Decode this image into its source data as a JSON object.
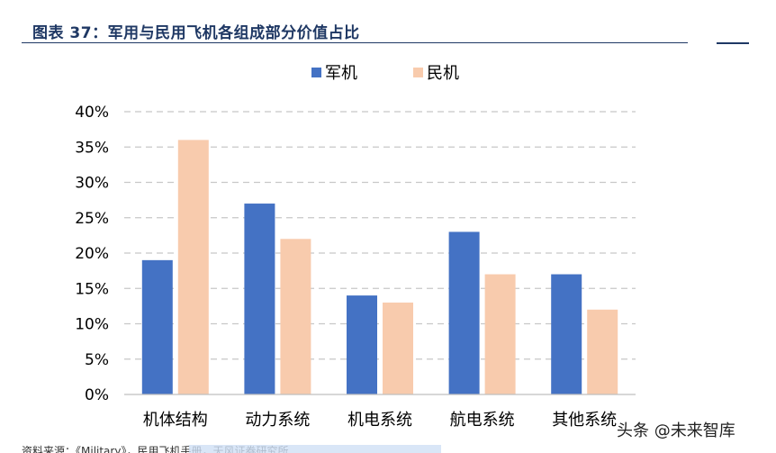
{
  "figure": {
    "title": "图表 37：军用与民用飞机各组成部分价值占比",
    "watermark": "头条 @未来智库",
    "source_partial": "资料来源：《Military》，民用飞机手册，天风证券研究所"
  },
  "colors": {
    "military": "#4472c4",
    "civil": "#f8cbad",
    "grid": "#c8c8c8",
    "axis": "#bfbfbf",
    "text": "#000000",
    "title": "#1f3864"
  },
  "chart_data": {
    "type": "bar",
    "categories": [
      "机体结构",
      "动力系统",
      "机电系统",
      "航电系统",
      "其他系统"
    ],
    "series": [
      {
        "name": "军机",
        "values": [
          19,
          27,
          14,
          23,
          17
        ]
      },
      {
        "name": "民机",
        "values": [
          36,
          22,
          13,
          17,
          12
        ]
      }
    ],
    "ylim": [
      0,
      40
    ],
    "yticks": [
      0,
      5,
      10,
      15,
      20,
      25,
      30,
      35,
      40
    ],
    "ytick_labels": [
      "0%",
      "5%",
      "10%",
      "15%",
      "20%",
      "25%",
      "30%",
      "35%",
      "40%"
    ],
    "grid": true,
    "grid_style": "dashed",
    "legend_position": "top"
  }
}
